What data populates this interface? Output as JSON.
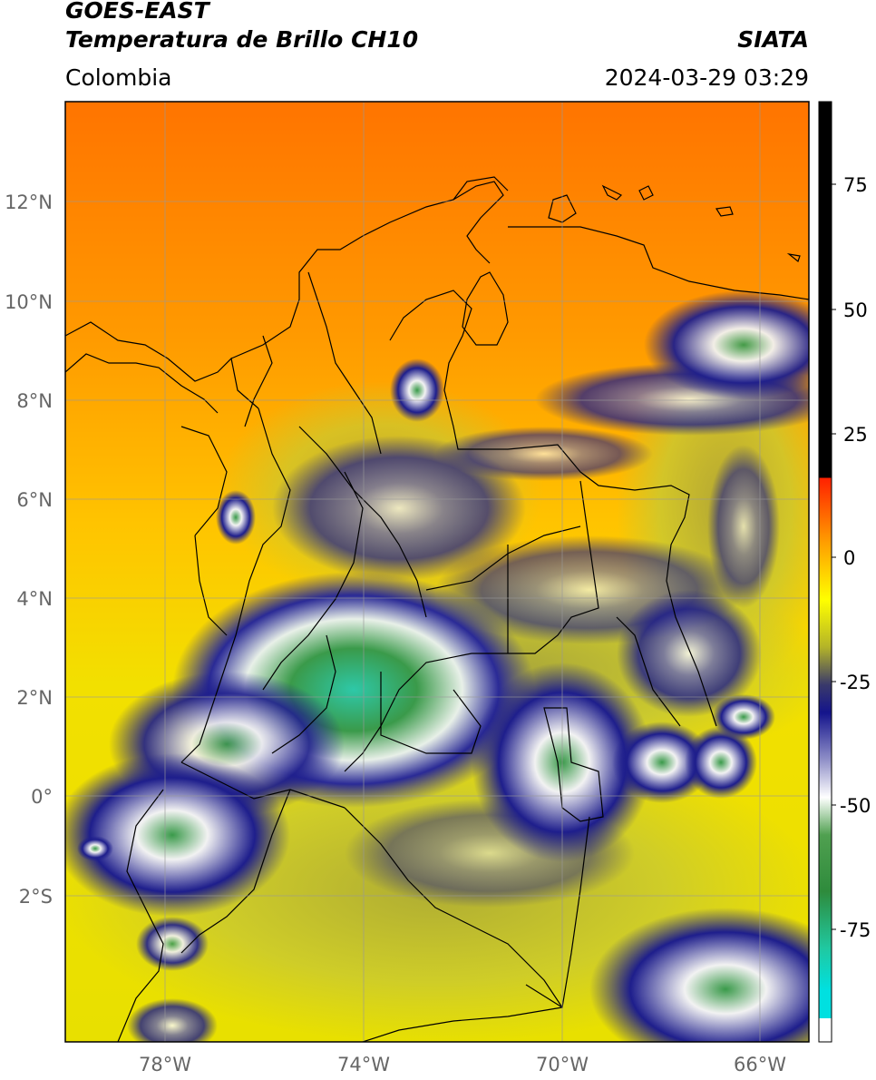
{
  "header": {
    "title_line1": "GOES-EAST",
    "title_line2": "Temperatura de Brillo CH10",
    "agency": "SIATA",
    "region": "Colombia",
    "timestamp": "2024-03-29 03:29"
  },
  "map": {
    "lat_labels": [
      "12°N",
      "10°N",
      "8°N",
      "6°N",
      "4°N",
      "2°N",
      "0°",
      "2°S"
    ],
    "lon_labels": [
      "78°W",
      "74°W",
      "70°W",
      "66°W"
    ],
    "colors": {
      "warm_orange": "#ff7a00",
      "orange": "#ff9a00",
      "yellow": "#ffe000",
      "olive": "#c8c832",
      "navy": "#1a1a8c",
      "white": "#f4f4f4",
      "green": "#3a9a4a",
      "teal": "#2ac8a8",
      "border": "#000000",
      "grid": "#999999"
    }
  },
  "colorbar": {
    "tick_labels": [
      "75",
      "50",
      "25",
      "0",
      "-25",
      "-50",
      "-75"
    ],
    "colors": {
      "black": "#000000",
      "red": "#ff2000",
      "orange": "#ffa000",
      "yellow": "#ffff00",
      "olive": "#b4b428",
      "navy": "#14148c",
      "white": "#ffffff",
      "green": "#2e8b3c",
      "cyan": "#00e0e0"
    }
  }
}
